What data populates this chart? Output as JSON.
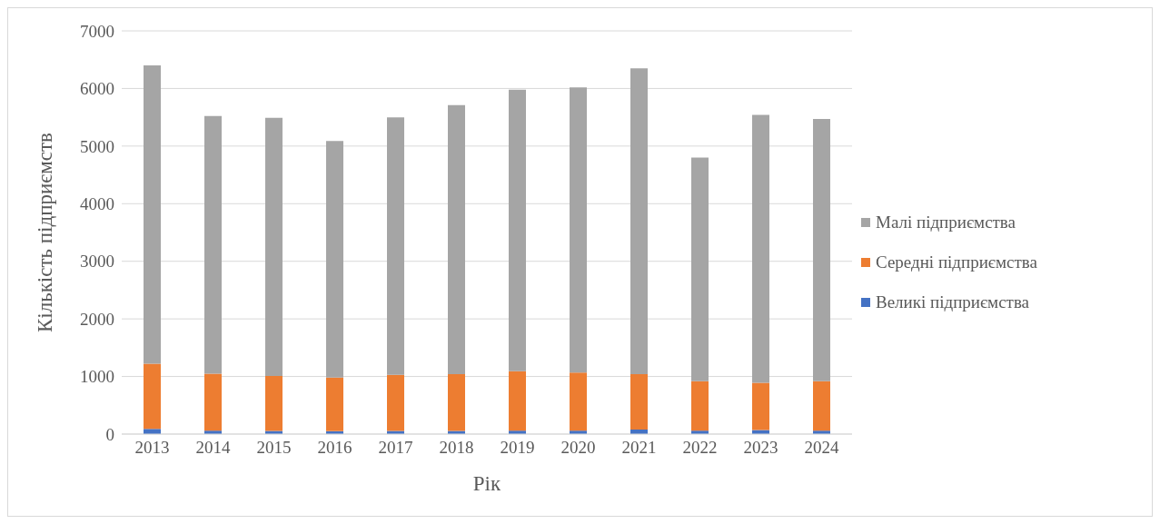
{
  "chart_data": {
    "type": "bar",
    "stacked": true,
    "xlabel": "Рік",
    "ylabel": "Кількість підприємств",
    "categories": [
      "2013",
      "2014",
      "2015",
      "2016",
      "2017",
      "2018",
      "2019",
      "2020",
      "2021",
      "2022",
      "2023",
      "2024"
    ],
    "series": [
      {
        "name": "Великі підприємства",
        "color": "#4472c4",
        "values": [
          90,
          60,
          55,
          50,
          55,
          55,
          60,
          60,
          80,
          60,
          70,
          60
        ]
      },
      {
        "name": "Середні підприємства",
        "color": "#ed7d31",
        "values": [
          1130,
          990,
          955,
          930,
          975,
          985,
          1030,
          1010,
          960,
          860,
          820,
          860
        ]
      },
      {
        "name": "Малі підприємства",
        "color": "#a5a5a5",
        "values": [
          5180,
          4470,
          4480,
          4110,
          4470,
          4670,
          4890,
          4950,
          5310,
          3880,
          4650,
          4550
        ]
      }
    ],
    "ylim": [
      0,
      7000
    ],
    "yticks": [
      0,
      1000,
      2000,
      3000,
      4000,
      5000,
      6000,
      7000
    ],
    "grid": "y",
    "legend": "right"
  }
}
